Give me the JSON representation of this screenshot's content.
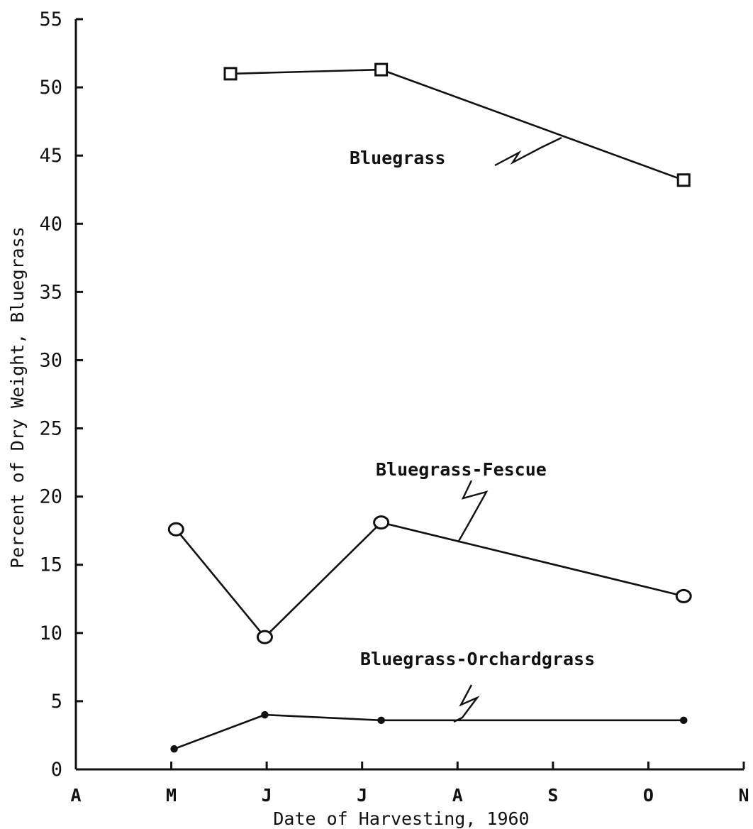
{
  "chart_data": {
    "type": "line",
    "title": "",
    "xlabel": "Date of Harvesting, 1960",
    "ylabel": "Percent of Dry Weight, Bluegrass",
    "x_tick_labels": [
      "A",
      "M",
      "J",
      "J",
      "A",
      "S",
      "O",
      "N"
    ],
    "y_tick_labels": [
      "0",
      "5",
      "10",
      "15",
      "20",
      "25",
      "30",
      "35",
      "40",
      "45",
      "50",
      "55"
    ],
    "xlim": [
      0,
      7
    ],
    "ylim": [
      0,
      55
    ],
    "grid": false,
    "legend": "none",
    "series": [
      {
        "name": "Bluegrass",
        "marker": "square",
        "points": [
          {
            "x": 1.62,
            "y": 51.0
          },
          {
            "x": 3.2,
            "y": 51.3
          },
          {
            "x": 6.37,
            "y": 43.2
          }
        ]
      },
      {
        "name": "Bluegrass-Fescue",
        "marker": "circle",
        "points": [
          {
            "x": 1.05,
            "y": 17.6
          },
          {
            "x": 1.98,
            "y": 9.7
          },
          {
            "x": 3.2,
            "y": 18.1
          },
          {
            "x": 6.37,
            "y": 12.7
          }
        ]
      },
      {
        "name": "Bluegrass-Orchardgrass",
        "marker": "dot",
        "points": [
          {
            "x": 1.03,
            "y": 1.5
          },
          {
            "x": 1.98,
            "y": 4.0
          },
          {
            "x": 3.2,
            "y": 3.6
          },
          {
            "x": 6.37,
            "y": 3.6
          }
        ]
      }
    ]
  }
}
